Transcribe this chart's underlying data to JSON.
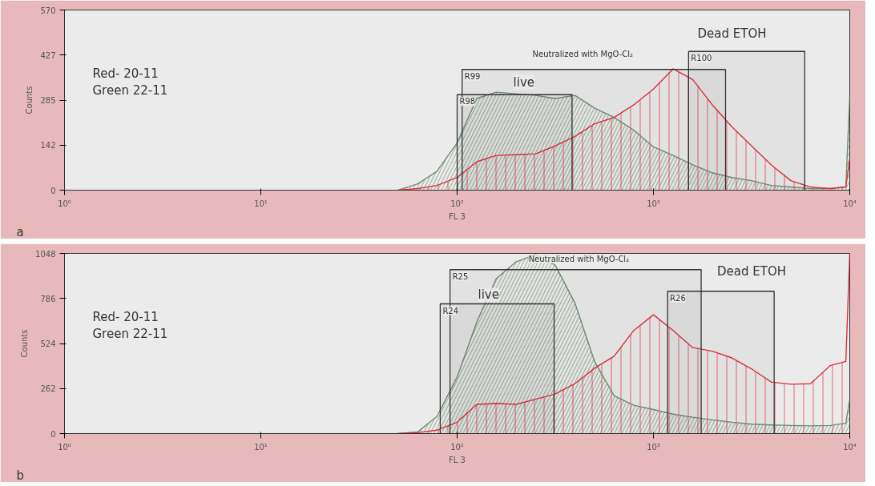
{
  "chart_data": [
    {
      "type": "area",
      "log": "x",
      "xlabel": "FL 3",
      "ylabel": "Counts",
      "xlim": [
        1,
        10000
      ],
      "xticks": [
        {
          "value": 1,
          "label": "10⁰"
        },
        {
          "value": 10,
          "label": "10¹"
        },
        {
          "value": 100,
          "label": "10²"
        },
        {
          "value": 1000,
          "label": "10³"
        },
        {
          "value": 10000,
          "label": "10⁴"
        }
      ],
      "ylim": [
        0,
        570
      ],
      "yticks": [
        0,
        142,
        285,
        427,
        570
      ],
      "x": [
        50,
        63,
        79,
        100,
        126,
        158,
        200,
        251,
        316,
        398,
        501,
        631,
        794,
        1000,
        1259,
        1585,
        1995,
        2512,
        3162,
        3981,
        5012,
        6310,
        7943,
        9550,
        10000
      ],
      "series": [
        {
          "color": "#6f8f72",
          "values": [
            0,
            20,
            60,
            150,
            290,
            310,
            305,
            300,
            290,
            300,
            260,
            230,
            190,
            137,
            110,
            80,
            55,
            40,
            30,
            15,
            10,
            5,
            5,
            10,
            297
          ]
        },
        {
          "color": "#e0303c",
          "values": [
            0,
            5,
            15,
            40,
            90,
            110,
            112,
            115,
            140,
            170,
            210,
            230,
            270,
            320,
            384,
            350,
            270,
            200,
            140,
            80,
            30,
            10,
            5,
            10,
            100
          ]
        }
      ],
      "bands": [
        {
          "axis": "x",
          "from": 100,
          "to": 385,
          "label": "R98"
        },
        {
          "axis": "x",
          "from": 106,
          "to": 2330,
          "label": "R99"
        },
        {
          "axis": "x",
          "from": 1510,
          "to": 5900,
          "label": "R100"
        }
      ],
      "annotations": [
        "Red- 20-11\nGreen 22-11",
        "a",
        "live",
        "Neutralized with MgO-Cl₂",
        "Dead ETOH"
      ]
    },
    {
      "type": "area",
      "log": "x",
      "xlabel": "FL 3",
      "ylabel": "Counts",
      "xlim": [
        1,
        10000
      ],
      "xticks": [
        {
          "value": 1,
          "label": "10⁰"
        },
        {
          "value": 10,
          "label": "10¹"
        },
        {
          "value": 100,
          "label": "10²"
        },
        {
          "value": 1000,
          "label": "10³"
        },
        {
          "value": 10000,
          "label": "10⁴"
        }
      ],
      "ylim": [
        0,
        1048
      ],
      "yticks": [
        0,
        262,
        524,
        786,
        1048
      ],
      "x": [
        50,
        63,
        79,
        100,
        126,
        158,
        200,
        251,
        316,
        398,
        501,
        631,
        794,
        1000,
        1259,
        1585,
        1995,
        2512,
        3162,
        3981,
        5012,
        6310,
        7943,
        9550,
        10000
      ],
      "series": [
        {
          "color": "#6f8f72",
          "values": [
            0,
            10,
            100,
            329,
            650,
            900,
            1000,
            1040,
            980,
            760,
            420,
            220,
            165,
            140,
            113,
            95,
            80,
            66,
            55,
            50,
            47,
            45,
            47,
            60,
            200
          ]
        },
        {
          "color": "#e0303c",
          "values": [
            0,
            5,
            20,
            66,
            170,
            175,
            170,
            200,
            230,
            290,
            380,
            450,
            600,
            691,
            600,
            500,
            479,
            440,
            376,
            300,
            287,
            290,
            395,
            420,
            1048
          ]
        }
      ],
      "bands": [
        {
          "axis": "x",
          "from": 82,
          "to": 312,
          "label": "R24"
        },
        {
          "axis": "x",
          "from": 92,
          "to": 1750,
          "label": "R25"
        },
        {
          "axis": "x",
          "from": 1180,
          "to": 4120,
          "label": "R26"
        }
      ],
      "annotations": [
        "Red- 20-11\nGreen 22-11",
        "b",
        "live",
        "Neutralized with MgO-Cl₂",
        "Dead ETOH"
      ]
    }
  ]
}
